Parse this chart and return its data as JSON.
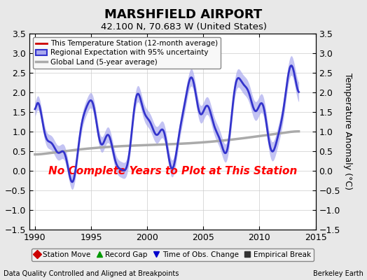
{
  "title": "MARSHFIELD AIRPORT",
  "subtitle": "42.100 N, 70.683 W (United States)",
  "ylabel": "Temperature Anomaly (°C)",
  "ylim": [
    -1.5,
    3.5
  ],
  "xlim": [
    1989.5,
    2015.0
  ],
  "yticks": [
    -1.5,
    -1.0,
    -0.5,
    0.0,
    0.5,
    1.0,
    1.5,
    2.0,
    2.5,
    3.0,
    3.5
  ],
  "xticks": [
    1990,
    1995,
    2000,
    2005,
    2010,
    2015
  ],
  "no_data_text": "No Complete Years to Plot at This Station",
  "footer_left": "Data Quality Controlled and Aligned at Breakpoints",
  "footer_right": "Berkeley Earth",
  "bg_color": "#e8e8e8",
  "plot_bg_color": "#ffffff",
  "legend1_items": [
    {
      "label": "This Temperature Station (12-month average)",
      "color": "#cc0000",
      "lw": 2.0
    },
    {
      "label": "Regional Expectation with 95% uncertainty",
      "color": "#3333cc",
      "lw": 2.0,
      "fill": "#aaaaee"
    },
    {
      "label": "Global Land (5-year average)",
      "color": "#aaaaaa",
      "lw": 2.5
    }
  ],
  "legend2_items": [
    {
      "label": "Station Move",
      "marker": "D",
      "color": "#cc0000"
    },
    {
      "label": "Record Gap",
      "marker": "^",
      "color": "#009900"
    },
    {
      "label": "Time of Obs. Change",
      "marker": "v",
      "color": "#0000cc"
    },
    {
      "label": "Empirical Break",
      "marker": "s",
      "color": "#333333"
    }
  ]
}
